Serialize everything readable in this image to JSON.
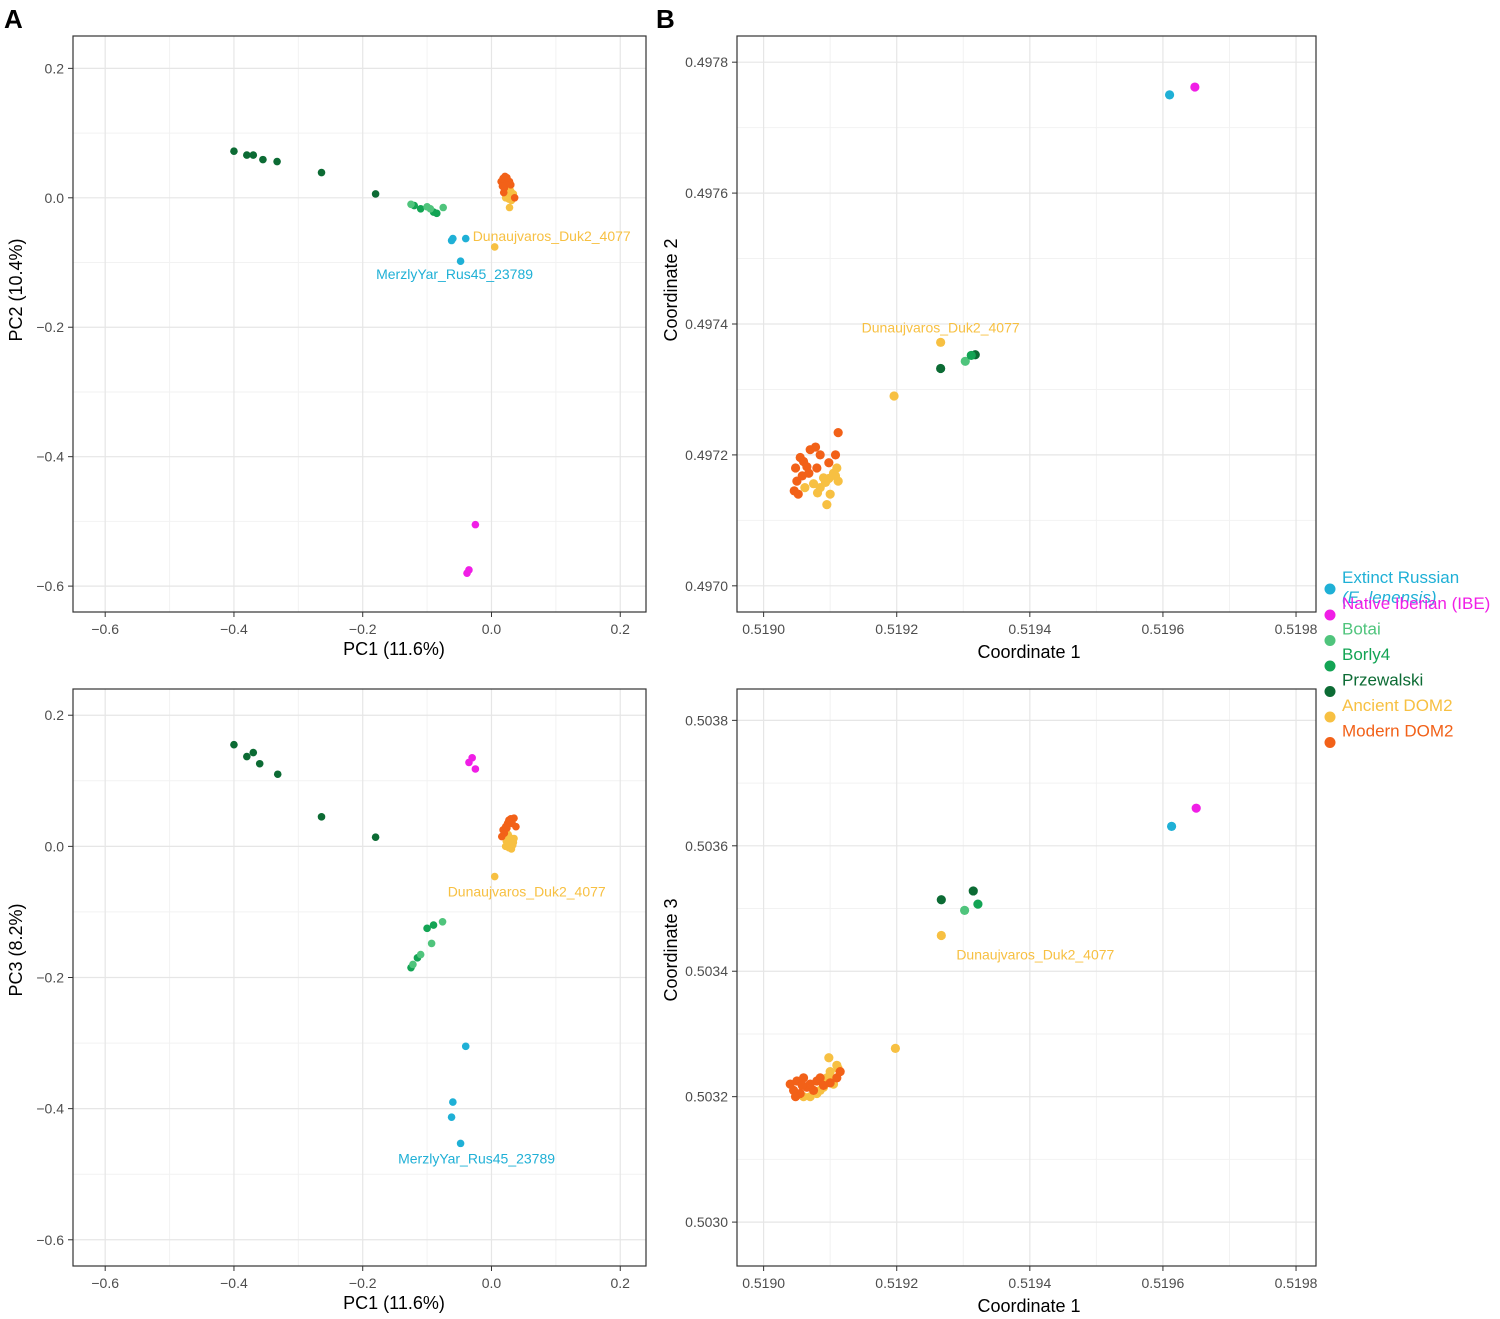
{
  "panel_labels": {
    "a": "A",
    "b": "B"
  },
  "colors": {
    "extinct_russian": "#1fb0d6",
    "native_iberian": "#f01ee6",
    "botai": "#4fc47c",
    "borly4": "#13a454",
    "przewalski": "#0c6b34",
    "ancient_dom2": "#f7c042",
    "modern_dom2": "#f26118",
    "grid_major": "#e6e6e6",
    "grid_minor": "#f2f2f2",
    "frame": "#333333"
  },
  "legend": {
    "items": [
      {
        "key": "extinct_russian",
        "label": "Extinct Russian",
        "label2": "(E. lenensis)",
        "color": "#1fb0d6"
      },
      {
        "key": "native_iberian",
        "label": "Native Iberian (IBE)",
        "color": "#f01ee6"
      },
      {
        "key": "botai",
        "label": "Botai",
        "color": "#4fc47c"
      },
      {
        "key": "borly4",
        "label": "Borly4",
        "color": "#13a454"
      },
      {
        "key": "przewalski",
        "label": "Przewalski",
        "color": "#0c6b34"
      },
      {
        "key": "ancient_dom2",
        "label": "Ancient DOM2",
        "color": "#f7c042"
      },
      {
        "key": "modern_dom2",
        "label": "Modern DOM2",
        "color": "#f26118"
      }
    ]
  },
  "chart_data": [
    {
      "id": "A-top",
      "type": "scatter",
      "xlabel": "PC1 (11.6%)",
      "ylabel": "PC2 (10.4%)",
      "xlim": [
        -0.65,
        0.24
      ],
      "ylim": [
        -0.64,
        0.25
      ],
      "xticks": [
        -0.6,
        -0.4,
        -0.2,
        0.0,
        0.2
      ],
      "xtick_labels": [
        "−0.6",
        "−0.4",
        "−0.2",
        "0.0",
        "0.2"
      ],
      "yticks": [
        -0.6,
        -0.4,
        -0.2,
        0.0,
        0.2
      ],
      "ytick_labels": [
        "−0.6",
        "−0.4",
        "−0.2",
        "0.0",
        "0.2"
      ],
      "grid": true,
      "series": [
        {
          "key": "przewalski",
          "points": [
            [
              -0.4,
              0.072
            ],
            [
              -0.38,
              0.066
            ],
            [
              -0.37,
              0.066
            ],
            [
              -0.355,
              0.059
            ],
            [
              -0.333,
              0.056
            ],
            [
              -0.264,
              0.039
            ],
            [
              -0.18,
              0.006
            ]
          ]
        },
        {
          "key": "borly4",
          "points": [
            [
              -0.12,
              -0.012
            ],
            [
              -0.11,
              -0.017
            ],
            [
              -0.09,
              -0.022
            ],
            [
              -0.085,
              -0.024
            ]
          ]
        },
        {
          "key": "botai",
          "points": [
            [
              -0.125,
              -0.01
            ],
            [
              -0.1,
              -0.014
            ],
            [
              -0.095,
              -0.017
            ],
            [
              -0.075,
              -0.015
            ]
          ]
        },
        {
          "key": "extinct_russian",
          "points": [
            [
              -0.062,
              -0.066
            ],
            [
              -0.06,
              -0.063
            ],
            [
              -0.04,
              -0.063
            ],
            [
              -0.048,
              -0.098
            ]
          ]
        },
        {
          "key": "native_iberian",
          "points": [
            [
              -0.025,
              -0.505
            ],
            [
              -0.035,
              -0.575
            ],
            [
              -0.038,
              -0.58
            ]
          ]
        },
        {
          "key": "ancient_dom2",
          "points": [
            [
              0.005,
              -0.076
            ],
            [
              0.028,
              -0.015
            ],
            [
              0.022,
              0.0
            ],
            [
              0.025,
              0.005
            ],
            [
              0.03,
              0.01
            ],
            [
              0.032,
              0.002
            ],
            [
              0.027,
              -0.002
            ],
            [
              0.034,
              0.006
            ],
            [
              0.029,
              0.012
            ],
            [
              0.023,
              0.008
            ],
            [
              0.031,
              -0.004
            ],
            [
              0.026,
              0.015
            ]
          ]
        },
        {
          "key": "modern_dom2",
          "points": [
            [
              0.015,
              0.025
            ],
            [
              0.018,
              0.03
            ],
            [
              0.022,
              0.028
            ],
            [
              0.025,
              0.022
            ],
            [
              0.02,
              0.015
            ],
            [
              0.017,
              0.018
            ],
            [
              0.028,
              0.025
            ],
            [
              0.024,
              0.031
            ],
            [
              0.019,
              0.008
            ],
            [
              0.036,
              0.0
            ],
            [
              0.03,
              0.02
            ],
            [
              0.021,
              0.033
            ]
          ]
        }
      ],
      "annotations": [
        {
          "text": "Dunaujvaros_Duk2_4077",
          "x": 0.005,
          "y": -0.076,
          "color_key": "ancient_dom2",
          "anchor": "start",
          "dx": -22,
          "dy": -6
        },
        {
          "text": "MerzlyYar_Rus45_23789",
          "x": -0.048,
          "y": -0.098,
          "color_key": "extinct_russian",
          "anchor": "middle",
          "dx": -6,
          "dy": 18
        }
      ]
    },
    {
      "id": "B-top",
      "type": "scatter",
      "xlabel": "Coordinate 1",
      "ylabel": "Coordinate 2",
      "xlim": [
        0.51896,
        0.51983
      ],
      "ylim": [
        0.49696,
        0.49784
      ],
      "xticks": [
        0.519,
        0.5192,
        0.5194,
        0.5196,
        0.5198
      ],
      "xtick_labels": [
        "0.5190",
        "0.5192",
        "0.5194",
        "0.5196",
        "0.5198"
      ],
      "yticks": [
        0.497,
        0.4972,
        0.4974,
        0.4976,
        0.4978
      ],
      "ytick_labels": [
        "0.4970",
        "0.4972",
        "0.4974",
        "0.4976",
        "0.4978"
      ],
      "grid": true,
      "series": [
        {
          "key": "extinct_russian",
          "points": [
            [
              0.51961,
              0.49775
            ]
          ]
        },
        {
          "key": "native_iberian",
          "points": [
            [
              0.519648,
              0.497762
            ]
          ]
        },
        {
          "key": "przewalski",
          "points": [
            [
              0.519266,
              0.497332
            ],
            [
              0.519318,
              0.497353
            ]
          ]
        },
        {
          "key": "botai",
          "points": [
            [
              0.519303,
              0.497343
            ]
          ]
        },
        {
          "key": "borly4",
          "points": [
            [
              0.519312,
              0.497352
            ]
          ]
        },
        {
          "key": "ancient_dom2",
          "points": [
            [
              0.519266,
              0.497372
            ],
            [
              0.519196,
              0.49729
            ],
            [
              0.519098,
              0.497164
            ],
            [
              0.519105,
              0.497172
            ],
            [
              0.519093,
              0.497158
            ],
            [
              0.51911,
              0.49718
            ],
            [
              0.519085,
              0.49715
            ],
            [
              0.5191,
              0.49714
            ],
            [
              0.519095,
              0.497124
            ],
            [
              0.519108,
              0.497168
            ],
            [
              0.51909,
              0.497165
            ],
            [
              0.519112,
              0.49716
            ],
            [
              0.519081,
              0.497142
            ],
            [
              0.519062,
              0.49715
            ],
            [
              0.519075,
              0.497156
            ]
          ]
        },
        {
          "key": "modern_dom2",
          "points": [
            [
              0.519048,
              0.49718
            ],
            [
              0.519055,
              0.497196
            ],
            [
              0.51906,
              0.49719
            ],
            [
              0.51907,
              0.497208
            ],
            [
              0.519078,
              0.497212
            ],
            [
              0.519085,
              0.4972
            ],
            [
              0.519058,
              0.497168
            ],
            [
              0.51905,
              0.49716
            ],
            [
              0.519046,
              0.497145
            ],
            [
              0.519052,
              0.49714
            ],
            [
              0.519068,
              0.497172
            ],
            [
              0.519112,
              0.497234
            ],
            [
              0.519108,
              0.4972
            ],
            [
              0.519098,
              0.497188
            ],
            [
              0.51908,
              0.49718
            ],
            [
              0.519065,
              0.497182
            ]
          ]
        }
      ],
      "annotations": [
        {
          "text": "Dunaujvaros_Duk2_4077",
          "x": 0.519266,
          "y": 0.497372,
          "color_key": "ancient_dom2",
          "anchor": "middle",
          "dx": 0,
          "dy": -10
        }
      ]
    },
    {
      "id": "A-bottom",
      "type": "scatter",
      "xlabel": "PC1 (11.6%)",
      "ylabel": "PC3 (8.2%)",
      "xlim": [
        -0.65,
        0.24
      ],
      "ylim": [
        -0.64,
        0.24
      ],
      "xticks": [
        -0.6,
        -0.4,
        -0.2,
        0.0,
        0.2
      ],
      "xtick_labels": [
        "−0.6",
        "−0.4",
        "−0.2",
        "0.0",
        "0.2"
      ],
      "yticks": [
        -0.6,
        -0.4,
        -0.2,
        0.0,
        0.2
      ],
      "ytick_labels": [
        "−0.6",
        "−0.4",
        "−0.2",
        "0.0",
        "0.2"
      ],
      "grid": true,
      "series": [
        {
          "key": "przewalski",
          "points": [
            [
              -0.4,
              0.155
            ],
            [
              -0.38,
              0.137
            ],
            [
              -0.37,
              0.143
            ],
            [
              -0.36,
              0.126
            ],
            [
              -0.332,
              0.11
            ],
            [
              -0.264,
              0.045
            ],
            [
              -0.18,
              0.014
            ]
          ]
        },
        {
          "key": "borly4",
          "points": [
            [
              -0.125,
              -0.185
            ],
            [
              -0.115,
              -0.17
            ],
            [
              -0.1,
              -0.125
            ],
            [
              -0.09,
              -0.12
            ]
          ]
        },
        {
          "key": "botai",
          "points": [
            [
              -0.122,
              -0.18
            ],
            [
              -0.11,
              -0.165
            ],
            [
              -0.093,
              -0.148
            ],
            [
              -0.076,
              -0.115
            ]
          ]
        },
        {
          "key": "native_iberian",
          "points": [
            [
              -0.03,
              0.135
            ],
            [
              -0.035,
              0.128
            ],
            [
              -0.025,
              0.118
            ]
          ]
        },
        {
          "key": "extinct_russian",
          "points": [
            [
              -0.04,
              -0.305
            ],
            [
              -0.06,
              -0.39
            ],
            [
              -0.062,
              -0.413
            ],
            [
              -0.048,
              -0.453
            ]
          ]
        },
        {
          "key": "ancient_dom2",
          "points": [
            [
              0.005,
              -0.046
            ],
            [
              0.022,
              0.0
            ],
            [
              0.025,
              0.005
            ],
            [
              0.03,
              0.01
            ],
            [
              0.033,
              0.002
            ],
            [
              0.027,
              -0.002
            ],
            [
              0.034,
              0.006
            ],
            [
              0.028,
              0.014
            ],
            [
              0.023,
              0.008
            ],
            [
              0.031,
              -0.004
            ],
            [
              0.026,
              0.018
            ],
            [
              0.035,
              0.012
            ]
          ]
        },
        {
          "key": "modern_dom2",
          "points": [
            [
              0.018,
              0.025
            ],
            [
              0.022,
              0.03
            ],
            [
              0.025,
              0.035
            ],
            [
              0.028,
              0.038
            ],
            [
              0.03,
              0.042
            ],
            [
              0.035,
              0.043
            ],
            [
              0.02,
              0.02
            ],
            [
              0.024,
              0.028
            ],
            [
              0.032,
              0.035
            ],
            [
              0.027,
              0.04
            ],
            [
              0.016,
              0.015
            ],
            [
              0.038,
              0.03
            ]
          ]
        }
      ],
      "annotations": [
        {
          "text": "Dunaujvaros_Duk2_4077",
          "x": 0.005,
          "y": -0.046,
          "color_key": "ancient_dom2",
          "anchor": "middle",
          "dx": 32,
          "dy": 20
        },
        {
          "text": "MerzlyYar_Rus45_23789",
          "x": -0.048,
          "y": -0.453,
          "color_key": "extinct_russian",
          "anchor": "middle",
          "dx": 16,
          "dy": 20
        }
      ]
    },
    {
      "id": "B-bottom",
      "type": "scatter",
      "xlabel": "Coordinate 1",
      "ylabel": "Coordinate 3",
      "xlim": [
        0.51896,
        0.51983
      ],
      "ylim": [
        0.50293,
        0.50385
      ],
      "xticks": [
        0.519,
        0.5192,
        0.5194,
        0.5196,
        0.5198
      ],
      "xtick_labels": [
        "0.5190",
        "0.5192",
        "0.5194",
        "0.5196",
        "0.5198"
      ],
      "yticks": [
        0.503,
        0.5032,
        0.5034,
        0.5036,
        0.5038
      ],
      "ytick_labels": [
        "0.5030",
        "0.5032",
        "0.5034",
        "0.5036",
        "0.5038"
      ],
      "grid": true,
      "series": [
        {
          "key": "extinct_russian",
          "points": [
            [
              0.519613,
              0.503631
            ]
          ]
        },
        {
          "key": "native_iberian",
          "points": [
            [
              0.51965,
              0.50366
            ]
          ]
        },
        {
          "key": "przewalski",
          "points": [
            [
              0.519267,
              0.503514
            ],
            [
              0.519315,
              0.503528
            ]
          ]
        },
        {
          "key": "botai",
          "points": [
            [
              0.519302,
              0.503497
            ]
          ]
        },
        {
          "key": "borly4",
          "points": [
            [
              0.519322,
              0.503507
            ]
          ]
        },
        {
          "key": "ancient_dom2",
          "points": [
            [
              0.519267,
              0.503457
            ],
            [
              0.519198,
              0.503277
            ],
            [
              0.519095,
              0.50323
            ],
            [
              0.5191,
              0.50324
            ],
            [
              0.519105,
              0.50322
            ],
            [
              0.51911,
              0.50325
            ],
            [
              0.51909,
              0.503215
            ],
            [
              0.51908,
              0.503205
            ],
            [
              0.51907,
              0.5032
            ],
            [
              0.519085,
              0.50321
            ],
            [
              0.519098,
              0.503262
            ],
            [
              0.51906,
              0.5032
            ],
            [
              0.519112,
              0.503245
            ],
            [
              0.519104,
              0.503228
            ],
            [
              0.519092,
              0.50322
            ]
          ]
        },
        {
          "key": "modern_dom2",
          "points": [
            [
              0.51904,
              0.50322
            ],
            [
              0.519045,
              0.50321
            ],
            [
              0.51905,
              0.503225
            ],
            [
              0.519055,
              0.503205
            ],
            [
              0.51906,
              0.50323
            ],
            [
              0.519065,
              0.503215
            ],
            [
              0.51907,
              0.50322
            ],
            [
              0.519075,
              0.50321
            ],
            [
              0.51908,
              0.503225
            ],
            [
              0.519085,
              0.50323
            ],
            [
              0.51909,
              0.503218
            ],
            [
              0.5191,
              0.503222
            ],
            [
              0.51911,
              0.50323
            ],
            [
              0.519115,
              0.50324
            ],
            [
              0.519048,
              0.5032
            ],
            [
              0.519058,
              0.503218
            ]
          ]
        }
      ],
      "annotations": [
        {
          "text": "Dunaujvaros_Duk2_4077",
          "x": 0.519267,
          "y": 0.503457,
          "color_key": "ancient_dom2",
          "anchor": "middle",
          "dx": 94,
          "dy": 24
        }
      ]
    }
  ]
}
